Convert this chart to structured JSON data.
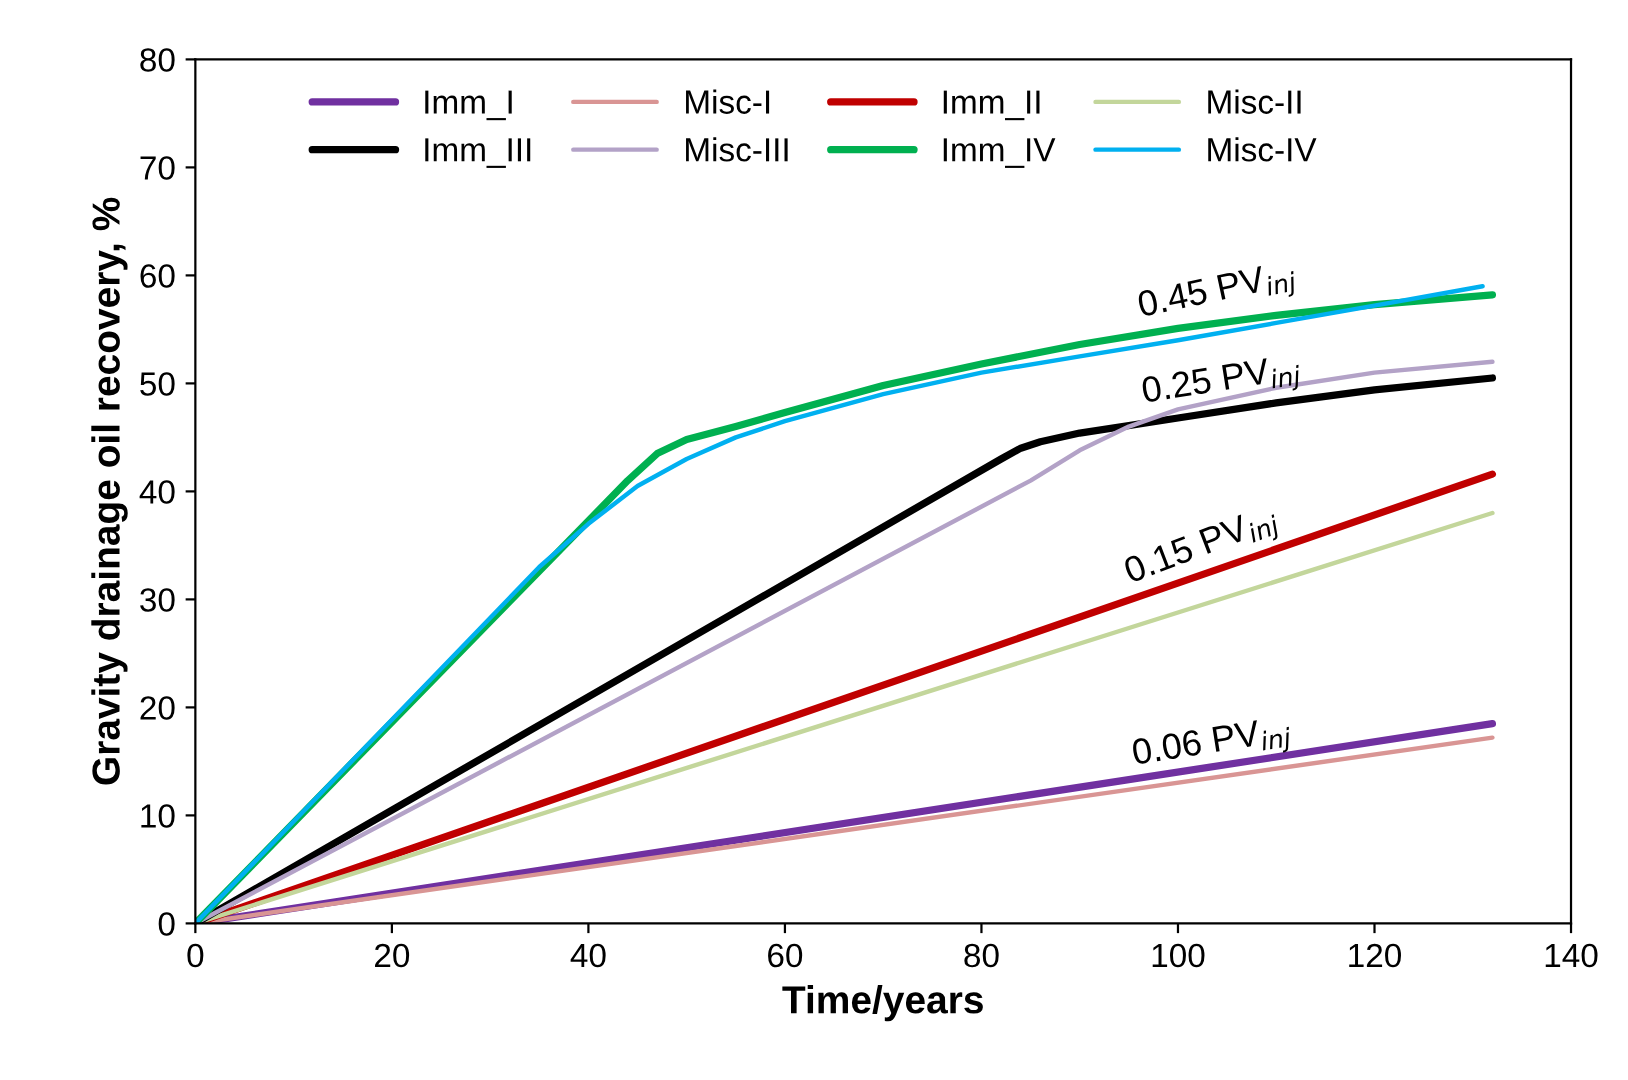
{
  "chart_data": {
    "type": "line",
    "xlabel": "Time/years",
    "ylabel": "Gravity drainage oil recovery, %",
    "xlim": [
      0,
      140
    ],
    "ylim": [
      0,
      80
    ],
    "xticks": [
      0,
      20,
      40,
      60,
      80,
      100,
      120,
      140
    ],
    "yticks": [
      0,
      10,
      20,
      30,
      40,
      50,
      60,
      70,
      80
    ],
    "grid": false,
    "legend": "top",
    "marker": "none",
    "line_style": "solid",
    "series": [
      {
        "name": "Imm_I",
        "color": "#7030a0",
        "x": [
          0,
          132
        ],
        "values": [
          0,
          18.5
        ]
      },
      {
        "name": "Misc-I",
        "color": "#d99594",
        "x": [
          0,
          132
        ],
        "values": [
          0,
          17.2
        ]
      },
      {
        "name": "Imm_II",
        "color": "#c00000",
        "x": [
          0,
          132
        ],
        "values": [
          0,
          41.6
        ]
      },
      {
        "name": "Misc-II",
        "color": "#c3d69b",
        "x": [
          0,
          132
        ],
        "values": [
          0,
          38
        ]
      },
      {
        "name": "Imm_III",
        "color": "#000000",
        "x": [
          0,
          82,
          84,
          86,
          90,
          100,
          110,
          120,
          132
        ],
        "values": [
          0,
          43,
          44,
          44.6,
          45.4,
          46.8,
          48.2,
          49.4,
          50.5
        ]
      },
      {
        "name": "Misc-III",
        "color": "#b3a2c7",
        "x": [
          0,
          85,
          90,
          95,
          100,
          110,
          120,
          132
        ],
        "values": [
          0,
          41,
          43.8,
          46,
          47.6,
          49.6,
          51,
          52
        ]
      },
      {
        "name": "Imm_IV",
        "color": "#00b050",
        "x": [
          0,
          44,
          47,
          50,
          55,
          60,
          70,
          80,
          90,
          100,
          110,
          120,
          132
        ],
        "values": [
          0,
          41,
          43.5,
          44.8,
          46,
          47.3,
          49.8,
          51.8,
          53.6,
          55.1,
          56.3,
          57.3,
          58.2
        ]
      },
      {
        "name": "Misc-IV",
        "color": "#00b0f0",
        "x": [
          0,
          35,
          40,
          45,
          50,
          55,
          60,
          70,
          80,
          90,
          100,
          110,
          120,
          131
        ],
        "values": [
          0,
          33,
          37,
          40.5,
          43,
          45,
          46.5,
          49,
          51,
          52.5,
          54,
          55.6,
          57.2,
          59
        ]
      }
    ],
    "annotations": [
      "0.45 PV$_{inj}$",
      "0.25 PV$_{inj}$",
      "0.15 PV$_{inj}$",
      "0.06 PV$_{inj}$"
    ]
  }
}
